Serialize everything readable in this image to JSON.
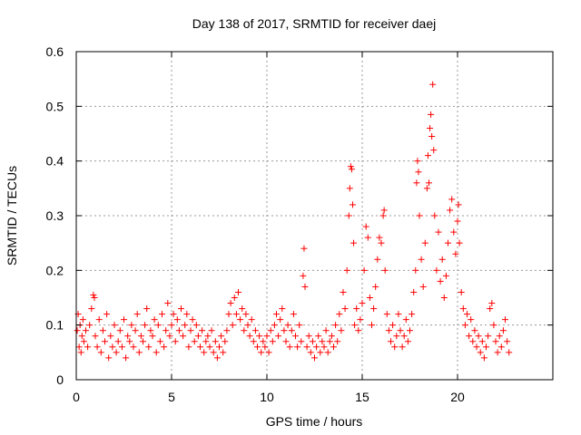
{
  "chart_data": {
    "type": "scatter",
    "title": "Day 138 of 2017, SRMTID for receiver daej",
    "xlabel": "GPS time / hours",
    "ylabel": "SRMTID / TECUs",
    "xlim": [
      0,
      25
    ],
    "ylim": [
      0,
      0.6
    ],
    "grid": true,
    "marker": "+",
    "color": "#ff0000",
    "x_ticks": [
      {
        "value": 0,
        "label": "0"
      },
      {
        "value": 5,
        "label": "5"
      },
      {
        "value": 10,
        "label": "10"
      },
      {
        "value": 15,
        "label": "15"
      },
      {
        "value": 20,
        "label": "20"
      }
    ],
    "y_ticks": [
      {
        "value": 0,
        "label": "0"
      },
      {
        "value": 0.1,
        "label": "0.1"
      },
      {
        "value": 0.2,
        "label": "0.2"
      },
      {
        "value": 0.3,
        "label": "0.3"
      },
      {
        "value": 0.4,
        "label": "0.4"
      },
      {
        "value": 0.5,
        "label": "0.5"
      },
      {
        "value": 0.6,
        "label": "0.6"
      }
    ],
    "series": [
      {
        "name": "SRMTID",
        "points": [
          [
            0.05,
            0.09
          ],
          [
            0.1,
            0.12
          ],
          [
            0.15,
            0.06
          ],
          [
            0.2,
            0.1
          ],
          [
            0.25,
            0.05
          ],
          [
            0.3,
            0.08
          ],
          [
            0.35,
            0.11
          ],
          [
            0.4,
            0.07
          ],
          [
            0.5,
            0.09
          ],
          [
            0.6,
            0.06
          ],
          [
            0.7,
            0.1
          ],
          [
            0.8,
            0.13
          ],
          [
            0.9,
            0.155
          ],
          [
            0.95,
            0.15
          ],
          [
            1.0,
            0.08
          ],
          [
            1.1,
            0.06
          ],
          [
            1.2,
            0.11
          ],
          [
            1.3,
            0.05
          ],
          [
            1.4,
            0.09
          ],
          [
            1.5,
            0.07
          ],
          [
            1.6,
            0.12
          ],
          [
            1.7,
            0.04
          ],
          [
            1.8,
            0.08
          ],
          [
            1.9,
            0.06
          ],
          [
            2.0,
            0.1
          ],
          [
            2.1,
            0.05
          ],
          [
            2.2,
            0.07
          ],
          [
            2.3,
            0.09
          ],
          [
            2.4,
            0.06
          ],
          [
            2.5,
            0.11
          ],
          [
            2.6,
            0.04
          ],
          [
            2.7,
            0.08
          ],
          [
            2.8,
            0.07
          ],
          [
            2.9,
            0.1
          ],
          [
            3.0,
            0.06
          ],
          [
            3.1,
            0.09
          ],
          [
            3.2,
            0.12
          ],
          [
            3.3,
            0.05
          ],
          [
            3.4,
            0.08
          ],
          [
            3.5,
            0.07
          ],
          [
            3.6,
            0.1
          ],
          [
            3.7,
            0.13
          ],
          [
            3.8,
            0.06
          ],
          [
            3.9,
            0.09
          ],
          [
            4.0,
            0.08
          ],
          [
            4.1,
            0.11
          ],
          [
            4.2,
            0.05
          ],
          [
            4.3,
            0.1
          ],
          [
            4.4,
            0.07
          ],
          [
            4.5,
            0.12
          ],
          [
            4.6,
            0.06
          ],
          [
            4.7,
            0.09
          ],
          [
            4.8,
            0.14
          ],
          [
            4.9,
            0.08
          ],
          [
            5.0,
            0.1
          ],
          [
            5.1,
            0.12
          ],
          [
            5.2,
            0.07
          ],
          [
            5.3,
            0.11
          ],
          [
            5.4,
            0.09
          ],
          [
            5.5,
            0.13
          ],
          [
            5.6,
            0.08
          ],
          [
            5.7,
            0.1
          ],
          [
            5.8,
            0.12
          ],
          [
            5.9,
            0.06
          ],
          [
            6.0,
            0.09
          ],
          [
            6.1,
            0.11
          ],
          [
            6.2,
            0.07
          ],
          [
            6.3,
            0.1
          ],
          [
            6.4,
            0.08
          ],
          [
            6.5,
            0.06
          ],
          [
            6.6,
            0.09
          ],
          [
            6.7,
            0.05
          ],
          [
            6.8,
            0.07
          ],
          [
            6.9,
            0.08
          ],
          [
            7.0,
            0.06
          ],
          [
            7.1,
            0.09
          ],
          [
            7.2,
            0.05
          ],
          [
            7.3,
            0.07
          ],
          [
            7.4,
            0.04
          ],
          [
            7.5,
            0.06
          ],
          [
            7.6,
            0.08
          ],
          [
            7.7,
            0.05
          ],
          [
            7.8,
            0.07
          ],
          [
            7.9,
            0.09
          ],
          [
            8.0,
            0.12
          ],
          [
            8.1,
            0.14
          ],
          [
            8.2,
            0.1
          ],
          [
            8.3,
            0.15
          ],
          [
            8.4,
            0.12
          ],
          [
            8.5,
            0.16
          ],
          [
            8.6,
            0.11
          ],
          [
            8.7,
            0.13
          ],
          [
            8.8,
            0.09
          ],
          [
            8.9,
            0.12
          ],
          [
            9.0,
            0.1
          ],
          [
            9.1,
            0.08
          ],
          [
            9.2,
            0.11
          ],
          [
            9.3,
            0.07
          ],
          [
            9.4,
            0.09
          ],
          [
            9.5,
            0.06
          ],
          [
            9.6,
            0.08
          ],
          [
            9.7,
            0.05
          ],
          [
            9.8,
            0.07
          ],
          [
            9.9,
            0.06
          ],
          [
            10.0,
            0.08
          ],
          [
            10.1,
            0.05
          ],
          [
            10.2,
            0.09
          ],
          [
            10.3,
            0.07
          ],
          [
            10.4,
            0.1
          ],
          [
            10.5,
            0.12
          ],
          [
            10.6,
            0.08
          ],
          [
            10.7,
            0.11
          ],
          [
            10.8,
            0.13
          ],
          [
            10.9,
            0.09
          ],
          [
            11.0,
            0.07
          ],
          [
            11.1,
            0.1
          ],
          [
            11.2,
            0.06
          ],
          [
            11.3,
            0.09
          ],
          [
            11.4,
            0.12
          ],
          [
            11.5,
            0.08
          ],
          [
            11.6,
            0.06
          ],
          [
            11.7,
            0.1
          ],
          [
            11.8,
            0.07
          ],
          [
            11.9,
            0.19
          ],
          [
            11.95,
            0.24
          ],
          [
            12.0,
            0.17
          ],
          [
            12.1,
            0.06
          ],
          [
            12.2,
            0.08
          ],
          [
            12.3,
            0.05
          ],
          [
            12.4,
            0.07
          ],
          [
            12.5,
            0.04
          ],
          [
            12.6,
            0.06
          ],
          [
            12.7,
            0.08
          ],
          [
            12.8,
            0.05
          ],
          [
            12.9,
            0.07
          ],
          [
            13.0,
            0.06
          ],
          [
            13.1,
            0.09
          ],
          [
            13.2,
            0.05
          ],
          [
            13.3,
            0.07
          ],
          [
            13.4,
            0.08
          ],
          [
            13.5,
            0.06
          ],
          [
            13.6,
            0.1
          ],
          [
            13.7,
            0.07
          ],
          [
            13.8,
            0.12
          ],
          [
            13.9,
            0.09
          ],
          [
            14.0,
            0.16
          ],
          [
            14.1,
            0.13
          ],
          [
            14.2,
            0.2
          ],
          [
            14.3,
            0.3
          ],
          [
            14.35,
            0.35
          ],
          [
            14.4,
            0.39
          ],
          [
            14.45,
            0.385
          ],
          [
            14.5,
            0.32
          ],
          [
            14.55,
            0.25
          ],
          [
            14.6,
            0.1
          ],
          [
            14.7,
            0.13
          ],
          [
            14.8,
            0.09
          ],
          [
            14.9,
            0.11
          ],
          [
            15.0,
            0.14
          ],
          [
            15.1,
            0.2
          ],
          [
            15.2,
            0.28
          ],
          [
            15.3,
            0.26
          ],
          [
            15.4,
            0.15
          ],
          [
            15.5,
            0.1
          ],
          [
            15.6,
            0.13
          ],
          [
            15.7,
            0.17
          ],
          [
            15.8,
            0.22
          ],
          [
            15.9,
            0.26
          ],
          [
            16.0,
            0.25
          ],
          [
            16.1,
            0.3
          ],
          [
            16.15,
            0.31
          ],
          [
            16.2,
            0.2
          ],
          [
            16.3,
            0.12
          ],
          [
            16.4,
            0.09
          ],
          [
            16.5,
            0.07
          ],
          [
            16.6,
            0.1
          ],
          [
            16.7,
            0.06
          ],
          [
            16.8,
            0.08
          ],
          [
            16.9,
            0.12
          ],
          [
            17.0,
            0.09
          ],
          [
            17.1,
            0.06
          ],
          [
            17.2,
            0.08
          ],
          [
            17.3,
            0.11
          ],
          [
            17.4,
            0.07
          ],
          [
            17.5,
            0.09
          ],
          [
            17.6,
            0.12
          ],
          [
            17.7,
            0.16
          ],
          [
            17.8,
            0.2
          ],
          [
            17.85,
            0.36
          ],
          [
            17.9,
            0.4
          ],
          [
            17.95,
            0.38
          ],
          [
            18.0,
            0.3
          ],
          [
            18.1,
            0.22
          ],
          [
            18.2,
            0.17
          ],
          [
            18.3,
            0.25
          ],
          [
            18.4,
            0.35
          ],
          [
            18.45,
            0.41
          ],
          [
            18.5,
            0.36
          ],
          [
            18.55,
            0.46
          ],
          [
            18.6,
            0.485
          ],
          [
            18.65,
            0.445
          ],
          [
            18.7,
            0.54
          ],
          [
            18.75,
            0.42
          ],
          [
            18.8,
            0.3
          ],
          [
            18.9,
            0.2
          ],
          [
            19.0,
            0.27
          ],
          [
            19.1,
            0.18
          ],
          [
            19.2,
            0.22
          ],
          [
            19.3,
            0.15
          ],
          [
            19.4,
            0.19
          ],
          [
            19.5,
            0.25
          ],
          [
            19.6,
            0.31
          ],
          [
            19.7,
            0.33
          ],
          [
            19.8,
            0.27
          ],
          [
            19.9,
            0.23
          ],
          [
            20.0,
            0.29
          ],
          [
            20.05,
            0.32
          ],
          [
            20.1,
            0.25
          ],
          [
            20.2,
            0.16
          ],
          [
            20.3,
            0.13
          ],
          [
            20.4,
            0.1
          ],
          [
            20.5,
            0.12
          ],
          [
            20.6,
            0.08
          ],
          [
            20.7,
            0.11
          ],
          [
            20.8,
            0.07
          ],
          [
            20.9,
            0.09
          ],
          [
            21.0,
            0.06
          ],
          [
            21.1,
            0.08
          ],
          [
            21.2,
            0.05
          ],
          [
            21.3,
            0.07
          ],
          [
            21.4,
            0.04
          ],
          [
            21.5,
            0.06
          ],
          [
            21.6,
            0.08
          ],
          [
            21.7,
            0.13
          ],
          [
            21.8,
            0.14
          ],
          [
            21.9,
            0.1
          ],
          [
            22.0,
            0.07
          ],
          [
            22.1,
            0.05
          ],
          [
            22.2,
            0.08
          ],
          [
            22.3,
            0.06
          ],
          [
            22.4,
            0.09
          ],
          [
            22.5,
            0.11
          ],
          [
            22.6,
            0.07
          ],
          [
            22.7,
            0.05
          ]
        ]
      }
    ]
  }
}
